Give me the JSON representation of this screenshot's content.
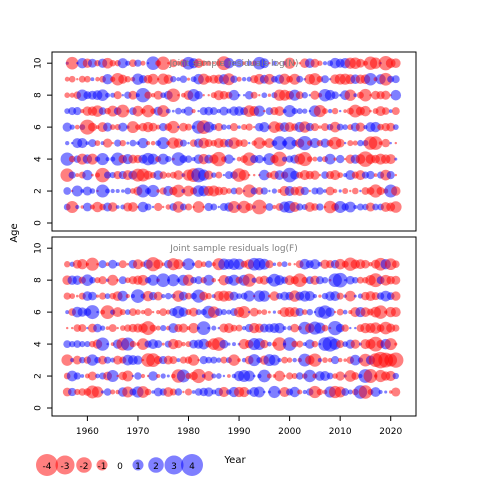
{
  "chart_data": [
    {
      "type": "scatter",
      "subtype": "bubble",
      "title": "Joint sample residuals log(N)",
      "xlabel": "",
      "ylabel": "Age",
      "xlim": [
        1953,
        2025
      ],
      "ylim": [
        -0.5,
        10.7
      ],
      "xticks": [
        1960,
        1970,
        1980,
        1990,
        2000,
        2010,
        2020
      ],
      "yticks": [
        0,
        2,
        4,
        6,
        8,
        10
      ],
      "ages": [
        1,
        2,
        3,
        4,
        5,
        6,
        7,
        8,
        9,
        10
      ],
      "years_range": [
        1956,
        2021
      ],
      "color_positive": "#0000ff",
      "color_negative": "#ff0000",
      "seed": 7
    },
    {
      "type": "scatter",
      "subtype": "bubble",
      "title": "Joint sample residuals log(F)",
      "xlabel": "Year",
      "ylabel": "Age",
      "xlim": [
        1953,
        2025
      ],
      "ylim": [
        -0.5,
        10.7
      ],
      "xticks": [
        1960,
        1970,
        1980,
        1990,
        2000,
        2010,
        2020
      ],
      "yticks": [
        0,
        2,
        4,
        6,
        8,
        10
      ],
      "ages": [
        1,
        2,
        3,
        4,
        5,
        6,
        7,
        8,
        9
      ],
      "years_range": [
        1956,
        2021
      ],
      "color_positive": "#0000ff",
      "color_negative": "#ff0000",
      "seed": 19
    }
  ],
  "shared": {
    "ylabel": "Age",
    "xlabel": "Year",
    "legend": {
      "placement": "bottom-left",
      "values": [
        -4,
        -3,
        -2,
        -1,
        0,
        1,
        2,
        3,
        4
      ],
      "labels": [
        "-4",
        "-3",
        "-2",
        "-1",
        "0",
        "1",
        "2",
        "3",
        "4"
      ]
    }
  }
}
